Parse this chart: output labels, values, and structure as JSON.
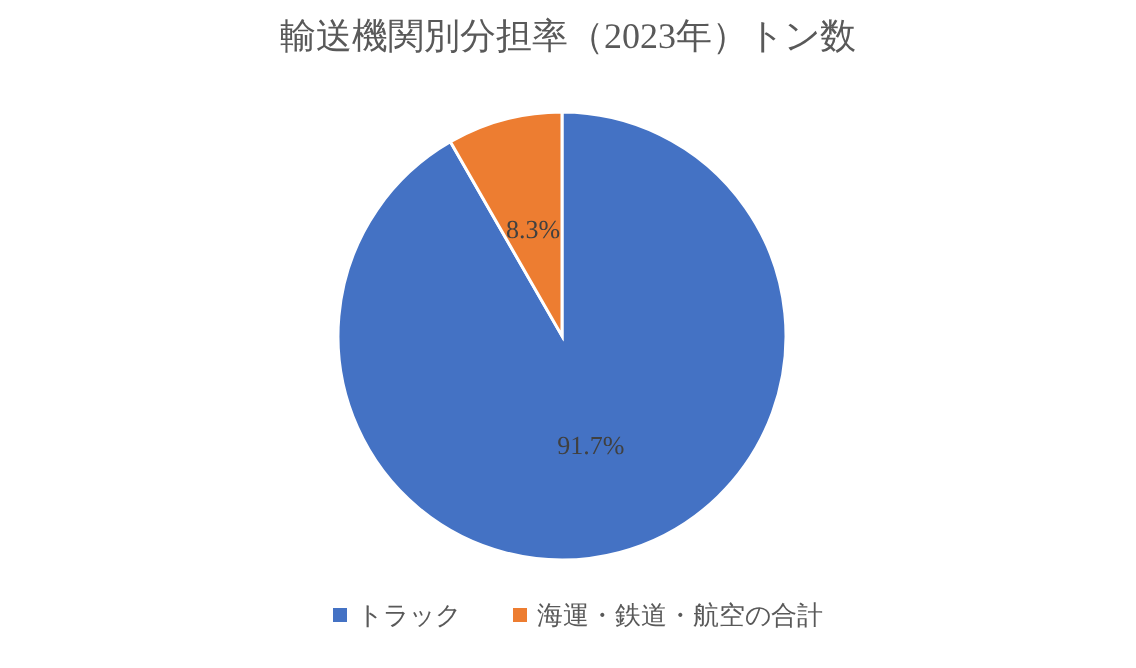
{
  "chart_data": {
    "type": "pie",
    "title": "輸送機関別分担率（2023年）トン数",
    "categories": [
      "トラック",
      "海運・鉄道・航空の合計"
    ],
    "values": [
      91.7,
      8.3
    ],
    "colors": [
      "#4472c4",
      "#ed7d31"
    ],
    "value_labels": [
      "91.7%",
      "8.3%"
    ],
    "legend": "bottom"
  }
}
